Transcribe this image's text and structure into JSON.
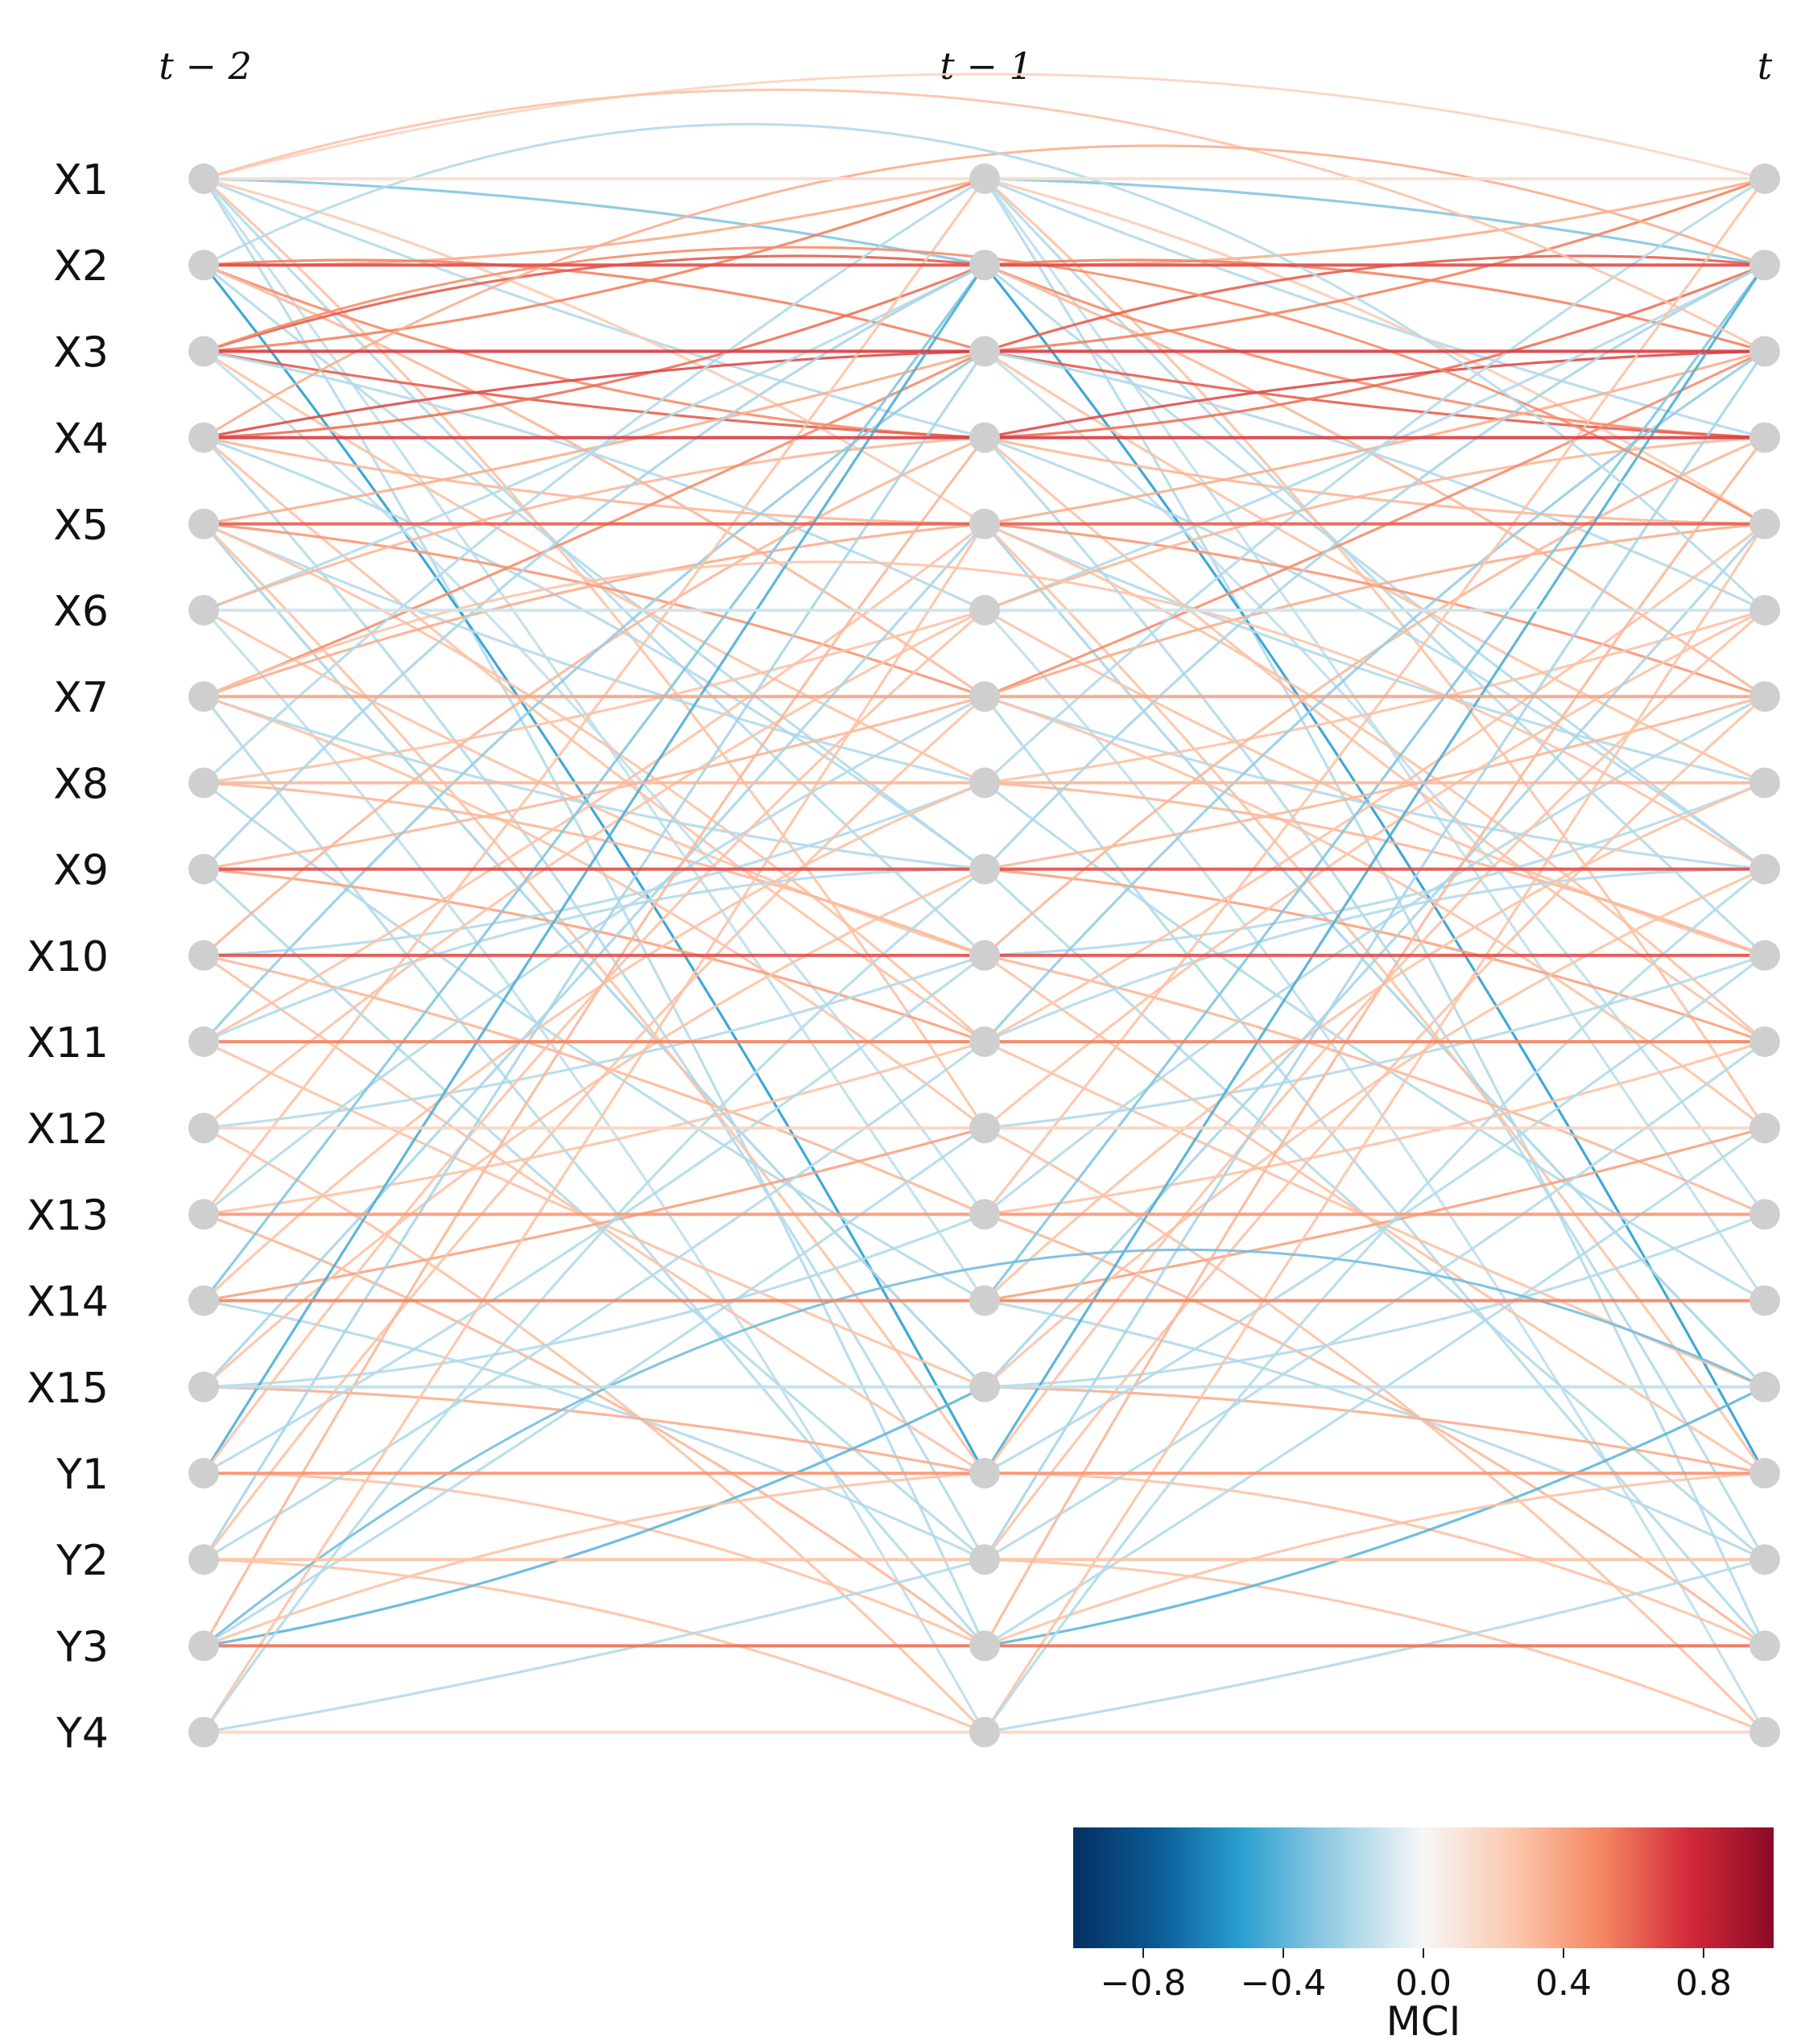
{
  "time_labels": [
    "t − 2",
    "t − 1",
    "t"
  ],
  "variables": [
    "X1",
    "X2",
    "X3",
    "X4",
    "X5",
    "X6",
    "X7",
    "X8",
    "X9",
    "X10",
    "X11",
    "X12",
    "X13",
    "X14",
    "X15",
    "Y1",
    "Y2",
    "Y3",
    "Y4"
  ],
  "node_color": "#cfcfcf",
  "colorbar": {
    "title": "MCI",
    "range": [
      -1,
      1
    ],
    "ticks": [
      -0.8,
      -0.4,
      0.0,
      0.4,
      0.8
    ],
    "tick_labels": [
      "−0.8",
      "−0.4",
      "0.0",
      "0.4",
      "0.8"
    ],
    "colors": {
      "neg_dark": "#053061",
      "neg_mid": "#2a9fd0",
      "zero": "#f7f7f7",
      "pos_mid": "#f4a582",
      "pos_dark": "#8b0a26"
    }
  },
  "edge_spec": {
    "autodependency": [
      {
        "var": "X1",
        "mci": 0.15
      },
      {
        "var": "X2",
        "mci": 0.75
      },
      {
        "var": "X3",
        "mci": 0.8
      },
      {
        "var": "X4",
        "mci": 0.8
      },
      {
        "var": "X5",
        "mci": 0.7
      },
      {
        "var": "X6",
        "mci": -0.2
      },
      {
        "var": "X7",
        "mci": 0.45
      },
      {
        "var": "X8",
        "mci": 0.35
      },
      {
        "var": "X9",
        "mci": 0.75
      },
      {
        "var": "X10",
        "mci": 0.75
      },
      {
        "var": "X11",
        "mci": 0.6
      },
      {
        "var": "X12",
        "mci": 0.2
      },
      {
        "var": "X13",
        "mci": 0.5
      },
      {
        "var": "X14",
        "mci": 0.6
      },
      {
        "var": "X15",
        "mci": -0.25
      },
      {
        "var": "Y1",
        "mci": 0.5
      },
      {
        "var": "Y2",
        "mci": 0.3
      },
      {
        "var": "Y3",
        "mci": 0.65
      },
      {
        "var": "Y4",
        "mci": 0.2
      }
    ],
    "lagged": [
      {
        "from": "X1",
        "to": "X2",
        "mci": -0.45
      },
      {
        "from": "X1",
        "to": "X4",
        "mci": -0.3
      },
      {
        "from": "X1",
        "to": "X5",
        "mci": 0.25
      },
      {
        "from": "X1",
        "to": "X10",
        "mci": -0.3
      },
      {
        "from": "X1",
        "to": "X12",
        "mci": 0.3
      },
      {
        "from": "X1",
        "to": "X14",
        "mci": -0.25
      },
      {
        "from": "X1",
        "to": "Y3",
        "mci": -0.3
      },
      {
        "from": "X2",
        "to": "X1",
        "mci": 0.4
      },
      {
        "from": "X2",
        "to": "X3",
        "mci": 0.6
      },
      {
        "from": "X2",
        "to": "X4",
        "mci": 0.55
      },
      {
        "from": "X2",
        "to": "X7",
        "mci": 0.35
      },
      {
        "from": "X2",
        "to": "X9",
        "mci": -0.3
      },
      {
        "from": "X2",
        "to": "Y1",
        "mci": -0.7
      },
      {
        "from": "X3",
        "to": "X1",
        "mci": 0.6
      },
      {
        "from": "X3",
        "to": "X2",
        "mci": 0.7
      },
      {
        "from": "X3",
        "to": "X4",
        "mci": 0.7
      },
      {
        "from": "X3",
        "to": "X6",
        "mci": -0.3
      },
      {
        "from": "X3",
        "to": "X8",
        "mci": 0.3
      },
      {
        "from": "X3",
        "to": "X13",
        "mci": -0.25
      },
      {
        "from": "X4",
        "to": "X2",
        "mci": 0.65
      },
      {
        "from": "X4",
        "to": "X3",
        "mci": 0.75
      },
      {
        "from": "X4",
        "to": "X5",
        "mci": 0.35
      },
      {
        "from": "X4",
        "to": "X9",
        "mci": -0.3
      },
      {
        "from": "X4",
        "to": "X11",
        "mci": 0.3
      },
      {
        "from": "X4",
        "to": "Y2",
        "mci": -0.3
      },
      {
        "from": "X5",
        "to": "X3",
        "mci": 0.4
      },
      {
        "from": "X5",
        "to": "X7",
        "mci": 0.5
      },
      {
        "from": "X5",
        "to": "X8",
        "mci": -0.3
      },
      {
        "from": "X5",
        "to": "X11",
        "mci": 0.3
      },
      {
        "from": "X5",
        "to": "X15",
        "mci": -0.35
      },
      {
        "from": "X5",
        "to": "Y1",
        "mci": 0.3
      },
      {
        "from": "X6",
        "to": "X2",
        "mci": -0.3
      },
      {
        "from": "X6",
        "to": "X4",
        "mci": 0.35
      },
      {
        "from": "X6",
        "to": "X10",
        "mci": 0.3
      },
      {
        "from": "X6",
        "to": "Y4",
        "mci": -0.25
      },
      {
        "from": "X7",
        "to": "X3",
        "mci": 0.55
      },
      {
        "from": "X7",
        "to": "X5",
        "mci": 0.4
      },
      {
        "from": "X7",
        "to": "X9",
        "mci": -0.3
      },
      {
        "from": "X7",
        "to": "X12",
        "mci": 0.3
      },
      {
        "from": "X7",
        "to": "Y3",
        "mci": -0.3
      },
      {
        "from": "X8",
        "to": "X1",
        "mci": -0.3
      },
      {
        "from": "X8",
        "to": "X6",
        "mci": 0.3
      },
      {
        "from": "X8",
        "to": "X10",
        "mci": 0.35
      },
      {
        "from": "X8",
        "to": "X14",
        "mci": -0.3
      },
      {
        "from": "X9",
        "to": "X2",
        "mci": -0.35
      },
      {
        "from": "X9",
        "to": "X7",
        "mci": 0.35
      },
      {
        "from": "X9",
        "to": "X11",
        "mci": 0.45
      },
      {
        "from": "X9",
        "to": "Y2",
        "mci": -0.3
      },
      {
        "from": "X10",
        "to": "X4",
        "mci": 0.35
      },
      {
        "from": "X10",
        "to": "X8",
        "mci": -0.3
      },
      {
        "from": "X10",
        "to": "X13",
        "mci": 0.35
      },
      {
        "from": "X10",
        "to": "Y1",
        "mci": 0.3
      },
      {
        "from": "X11",
        "to": "X3",
        "mci": -0.4
      },
      {
        "from": "X11",
        "to": "X5",
        "mci": 0.3
      },
      {
        "from": "X11",
        "to": "X9",
        "mci": -0.3
      },
      {
        "from": "X11",
        "to": "X15",
        "mci": 0.3
      },
      {
        "from": "X12",
        "to": "X6",
        "mci": 0.3
      },
      {
        "from": "X12",
        "to": "X10",
        "mci": -0.3
      },
      {
        "from": "X12",
        "to": "Y4",
        "mci": 0.3
      },
      {
        "from": "X13",
        "to": "X1",
        "mci": 0.3
      },
      {
        "from": "X13",
        "to": "X7",
        "mci": -0.3
      },
      {
        "from": "X13",
        "to": "X11",
        "mci": 0.3
      },
      {
        "from": "X13",
        "to": "Y3",
        "mci": 0.35
      },
      {
        "from": "X14",
        "to": "X2",
        "mci": -0.45
      },
      {
        "from": "X14",
        "to": "X8",
        "mci": 0.3
      },
      {
        "from": "X14",
        "to": "X12",
        "mci": 0.45
      },
      {
        "from": "X14",
        "to": "Y2",
        "mci": -0.3
      },
      {
        "from": "X15",
        "to": "X5",
        "mci": -0.35
      },
      {
        "from": "X15",
        "to": "X9",
        "mci": 0.3
      },
      {
        "from": "X15",
        "to": "X13",
        "mci": -0.3
      },
      {
        "from": "X15",
        "to": "Y1",
        "mci": 0.4
      },
      {
        "from": "Y1",
        "to": "X2",
        "mci": -0.6
      },
      {
        "from": "Y1",
        "to": "X6",
        "mci": 0.3
      },
      {
        "from": "Y1",
        "to": "X10",
        "mci": -0.3
      },
      {
        "from": "Y1",
        "to": "Y3",
        "mci": 0.3
      },
      {
        "from": "Y2",
        "to": "X3",
        "mci": -0.35
      },
      {
        "from": "Y2",
        "to": "X7",
        "mci": 0.3
      },
      {
        "from": "Y2",
        "to": "X11",
        "mci": -0.3
      },
      {
        "from": "Y2",
        "to": "Y4",
        "mci": 0.3
      },
      {
        "from": "Y3",
        "to": "X15",
        "mci": -0.55
      },
      {
        "from": "Y3",
        "to": "X4",
        "mci": 0.35
      },
      {
        "from": "Y3",
        "to": "X12",
        "mci": -0.3
      },
      {
        "from": "Y3",
        "to": "Y1",
        "mci": 0.3
      },
      {
        "from": "Y4",
        "to": "X5",
        "mci": 0.3
      },
      {
        "from": "Y4",
        "to": "X9",
        "mci": -0.3
      },
      {
        "from": "Y4",
        "to": "Y2",
        "mci": -0.3
      }
    ],
    "lag2": [
      {
        "from": "X1",
        "to": "X1",
        "mci": 0.2
      },
      {
        "from": "X1",
        "to": "X3",
        "mci": 0.3
      },
      {
        "from": "X3",
        "to": "X5",
        "mci": 0.55
      },
      {
        "from": "X4",
        "to": "X2",
        "mci": 0.4
      },
      {
        "from": "X7",
        "to": "X9",
        "mci": 0.3
      },
      {
        "from": "Y3",
        "to": "X15",
        "mci": -0.5
      },
      {
        "from": "X2",
        "to": "X6",
        "mci": -0.3
      }
    ]
  }
}
